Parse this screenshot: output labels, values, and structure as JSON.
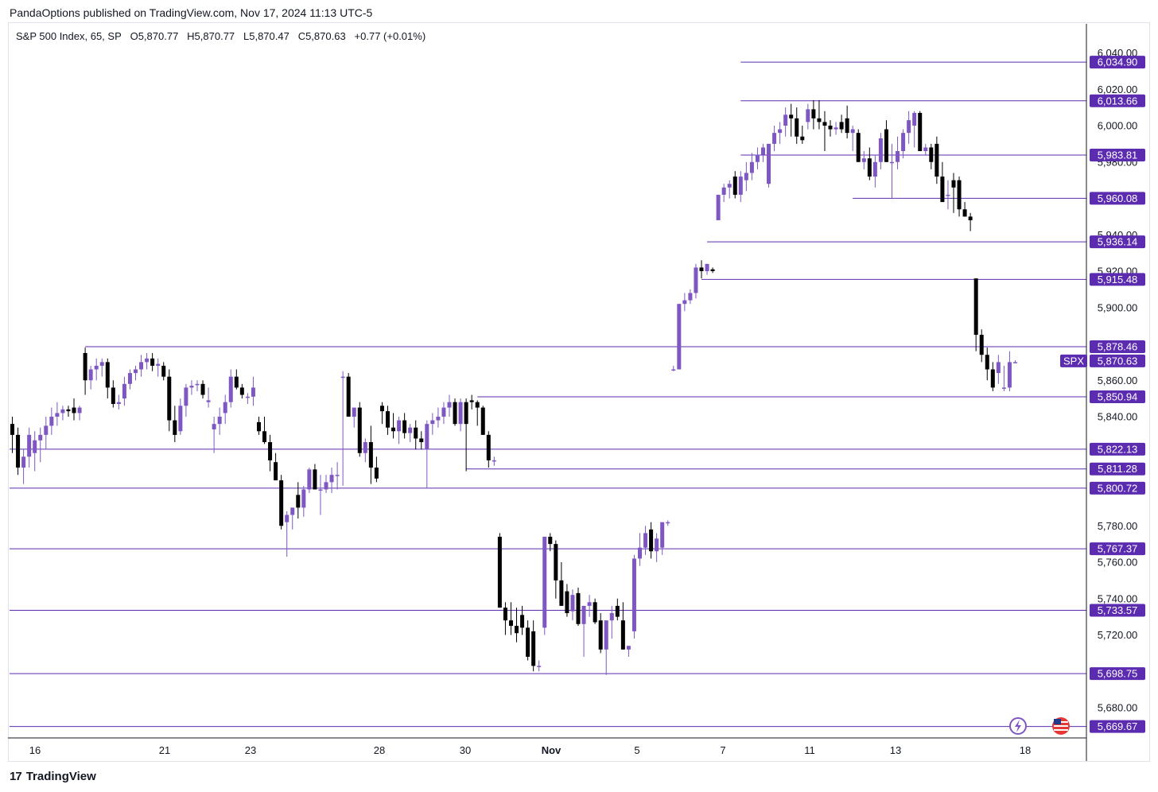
{
  "publisher_line": "PandaOptions published on TradingView.com, Nov 17, 2024 11:13 UTC-5",
  "legend": {
    "symbol": "S&P 500 Index, 65, SP",
    "open": "O5,870.77",
    "high": "H5,870.77",
    "low": "L5,870.47",
    "close": "C5,870.63",
    "change": "+0.77 (+0.01%)"
  },
  "branding": "TradingView",
  "colors": {
    "up": "#7e57c2",
    "down": "#000000",
    "level_line": "#5b2bb0",
    "label_bg": "#5b2bb0",
    "label_text": "#ffffff"
  },
  "icons": [
    "lightning-icon",
    "us-flag-icon"
  ],
  "chart_data": {
    "type": "candlestick",
    "symbol_tag": "SPX",
    "last_price": "5,870.63",
    "y_axis": {
      "ticks": [
        "5,680.00",
        "5,720.00",
        "5,740.00",
        "5,760.00",
        "5,780.00",
        "5,840.00",
        "5,860.00",
        "5,900.00",
        "5,920.00",
        "5,940.00",
        "5,960.00",
        "5,980.00",
        "6,000.00",
        "6,020.00",
        "6,040.00"
      ],
      "range": [
        5660,
        6045
      ]
    },
    "x_axis": {
      "ticks": [
        "16",
        "21",
        "23",
        "28",
        "30",
        "Nov",
        "5",
        "7",
        "11",
        "13",
        "18"
      ]
    },
    "levels": [
      {
        "value": 6034.9,
        "label": "6,034.90",
        "from_candle": 130
      },
      {
        "value": 6013.66,
        "label": "6,013.66",
        "from_candle": 130
      },
      {
        "value": 5983.81,
        "label": "5,983.81",
        "from_candle": 130
      },
      {
        "value": 5960.08,
        "label": "5,960.08",
        "from_candle": 150
      },
      {
        "value": 5936.14,
        "label": "5,936.14",
        "from_candle": 124
      },
      {
        "value": 5915.48,
        "label": "5,915.48",
        "from_candle": 123
      },
      {
        "value": 5878.46,
        "label": "5,878.46",
        "from_candle": 13
      },
      {
        "value": 5850.94,
        "label": "5,850.94",
        "from_candle": 83
      },
      {
        "value": 5822.13,
        "label": "5,822.13",
        "from_candle": 0
      },
      {
        "value": 5811.28,
        "label": "5,811.28",
        "from_candle": 81
      },
      {
        "value": 5800.72,
        "label": "5,800.72",
        "from_candle": 0
      },
      {
        "value": 5767.37,
        "label": "5,767.37",
        "from_candle": 0
      },
      {
        "value": 5733.57,
        "label": "5,733.57",
        "from_candle": 0
      },
      {
        "value": 5698.75,
        "label": "5,698.75",
        "from_candle": 0
      },
      {
        "value": 5669.67,
        "label": "5,669.67",
        "from_candle": 0
      }
    ],
    "candles": [
      [
        5836,
        5840,
        5820,
        5830
      ],
      [
        5830,
        5834,
        5808,
        5812
      ],
      [
        5812,
        5822,
        5803,
        5818
      ],
      [
        5818,
        5834,
        5812,
        5830
      ],
      [
        5820,
        5832,
        5810,
        5827
      ],
      [
        5827,
        5834,
        5815,
        5830
      ],
      [
        5830,
        5840,
        5822,
        5835
      ],
      [
        5835,
        5845,
        5830,
        5840
      ],
      [
        5840,
        5848,
        5835,
        5842
      ],
      [
        5842,
        5846,
        5838,
        5844
      ],
      [
        5844,
        5846,
        5840,
        5843
      ],
      [
        5845,
        5850,
        5838,
        5842
      ],
      [
        5842,
        5846,
        5838,
        5845
      ],
      [
        5875,
        5878,
        5852,
        5860
      ],
      [
        5860,
        5868,
        5855,
        5866
      ],
      [
        5866,
        5872,
        5860,
        5868
      ],
      [
        5868,
        5872,
        5862,
        5870
      ],
      [
        5870,
        5872,
        5850,
        5856
      ],
      [
        5856,
        5860,
        5845,
        5847
      ],
      [
        5847,
        5852,
        5844,
        5848
      ],
      [
        5850,
        5862,
        5846,
        5858
      ],
      [
        5858,
        5866,
        5855,
        5864
      ],
      [
        5864,
        5868,
        5860,
        5866
      ],
      [
        5866,
        5874,
        5862,
        5870
      ],
      [
        5870,
        5875,
        5866,
        5872
      ],
      [
        5872,
        5875,
        5865,
        5868
      ],
      [
        5868,
        5872,
        5862,
        5869
      ],
      [
        5868,
        5870,
        5860,
        5862
      ],
      [
        5862,
        5866,
        5832,
        5838
      ],
      [
        5838,
        5846,
        5826,
        5830
      ],
      [
        5832,
        5850,
        5830,
        5846
      ],
      [
        5846,
        5858,
        5840,
        5856
      ],
      [
        5856,
        5860,
        5852,
        5857
      ],
      [
        5858,
        5860,
        5854,
        5858
      ],
      [
        5858,
        5860,
        5850,
        5852
      ],
      [
        5848,
        5856,
        5845,
        5849
      ],
      [
        5833,
        5840,
        5820,
        5836
      ],
      [
        5836,
        5845,
        5830,
        5840
      ],
      [
        5842,
        5852,
        5836,
        5848
      ],
      [
        5848,
        5866,
        5845,
        5862
      ],
      [
        5862,
        5866,
        5855,
        5856
      ],
      [
        5856,
        5858,
        5850,
        5852
      ],
      [
        5851,
        5853,
        5847,
        5851
      ],
      [
        5851,
        5862,
        5846,
        5856
      ],
      [
        5837,
        5840,
        5830,
        5832
      ],
      [
        5832,
        5840,
        5825,
        5826
      ],
      [
        5826,
        5830,
        5810,
        5816
      ],
      [
        5815,
        5820,
        5805,
        5805
      ],
      [
        5805,
        5808,
        5778,
        5780
      ],
      [
        5782,
        5788,
        5763,
        5786
      ],
      [
        5786,
        5790,
        5778,
        5790
      ],
      [
        5797,
        5804,
        5784,
        5790
      ],
      [
        5790,
        5802,
        5785,
        5800
      ],
      [
        5800,
        5812,
        5798,
        5811
      ],
      [
        5811,
        5814,
        5800,
        5800
      ],
      [
        5800,
        5808,
        5786,
        5800
      ],
      [
        5800,
        5808,
        5798,
        5804
      ],
      [
        5804,
        5812,
        5798,
        5808
      ],
      [
        5808,
        5815,
        5800,
        5808
      ],
      [
        5862,
        5865,
        5802,
        5862
      ],
      [
        5862,
        5864,
        5840,
        5840
      ],
      [
        5840,
        5845,
        5834,
        5845
      ],
      [
        5845,
        5848,
        5818,
        5820
      ],
      [
        5820,
        5828,
        5815,
        5826
      ],
      [
        5826,
        5835,
        5803,
        5812
      ],
      [
        5812,
        5818,
        5804,
        5806
      ],
      [
        5846,
        5848,
        5836,
        5843
      ],
      [
        5843,
        5846,
        5830,
        5834
      ],
      [
        5834,
        5842,
        5828,
        5832
      ],
      [
        5832,
        5840,
        5825,
        5838
      ],
      [
        5838,
        5842,
        5828,
        5831
      ],
      [
        5831,
        5836,
        5826,
        5834
      ],
      [
        5834,
        5838,
        5822,
        5828
      ],
      [
        5828,
        5832,
        5822,
        5826
      ],
      [
        5822,
        5838,
        5801,
        5836
      ],
      [
        5836,
        5842,
        5830,
        5838
      ],
      [
        5838,
        5845,
        5834,
        5840
      ],
      [
        5840,
        5848,
        5836,
        5845
      ],
      [
        5845,
        5852,
        5840,
        5848
      ],
      [
        5848,
        5850,
        5835,
        5836
      ],
      [
        5836,
        5850,
        5832,
        5848
      ],
      [
        5848,
        5850,
        5810,
        5836
      ],
      [
        5849,
        5852,
        5844,
        5848
      ],
      [
        5848,
        5849,
        5835,
        5845
      ],
      [
        5845,
        5846,
        5830,
        5830
      ],
      [
        5830,
        5832,
        5812,
        5816
      ],
      [
        5816,
        5818,
        5813,
        5816
      ],
      [
        5774,
        5776,
        5735,
        5735
      ],
      [
        5735,
        5738,
        5720,
        5728
      ],
      [
        5728,
        5738,
        5720,
        5725
      ],
      [
        5725,
        5735,
        5716,
        5721
      ],
      [
        5731,
        5736,
        5720,
        5724
      ],
      [
        5724,
        5728,
        5706,
        5708
      ],
      [
        5722,
        5728,
        5700,
        5703
      ],
      [
        5703,
        5706,
        5700,
        5703
      ],
      [
        5724,
        5774,
        5720,
        5774
      ],
      [
        5774,
        5776,
        5766,
        5770
      ],
      [
        5770,
        5772,
        5740,
        5750
      ],
      [
        5750,
        5760,
        5736,
        5736
      ],
      [
        5744,
        5748,
        5730,
        5732
      ],
      [
        5733,
        5745,
        5728,
        5742
      ],
      [
        5743,
        5746,
        5725,
        5726
      ],
      [
        5726,
        5736,
        5708,
        5736
      ],
      [
        5736,
        5742,
        5730,
        5738
      ],
      [
        5738,
        5740,
        5726,
        5727
      ],
      [
        5728,
        5732,
        5710,
        5712
      ],
      [
        5712,
        5728,
        5698,
        5728
      ],
      [
        5728,
        5736,
        5718,
        5732
      ],
      [
        5736,
        5740,
        5728,
        5730
      ],
      [
        5728,
        5738,
        5712,
        5712
      ],
      [
        5712,
        5714,
        5708,
        5714
      ],
      [
        5722,
        5764,
        5718,
        5762
      ],
      [
        5762,
        5776,
        5758,
        5768
      ],
      [
        5768,
        5780,
        5764,
        5776
      ],
      [
        5778,
        5782,
        5762,
        5766
      ],
      [
        5766,
        5776,
        5760,
        5773
      ],
      [
        5768,
        5782,
        5764,
        5782
      ],
      [
        5782,
        5783,
        5780,
        5782
      ],
      [
        5866,
        5868,
        5865,
        5866
      ],
      [
        5866,
        5902,
        5866,
        5902
      ],
      [
        5902,
        5908,
        5898,
        5904
      ],
      [
        5904,
        5910,
        5902,
        5908
      ],
      [
        5908,
        5924,
        5905,
        5922
      ],
      [
        5922,
        5926,
        5916,
        5920
      ],
      [
        5920,
        5924,
        5918,
        5924
      ],
      [
        5921,
        5922,
        5919,
        5920
      ],
      [
        5948,
        5962,
        5948,
        5962
      ],
      [
        5962,
        5968,
        5958,
        5966
      ],
      [
        5966,
        5970,
        5960,
        5968
      ],
      [
        5972,
        5975,
        5960,
        5962
      ],
      [
        5962,
        5975,
        5958,
        5972
      ],
      [
        5970,
        5980,
        5964,
        5974
      ],
      [
        5974,
        5985,
        5970,
        5980
      ],
      [
        5980,
        5988,
        5976,
        5984
      ],
      [
        5984,
        5990,
        5980,
        5988
      ],
      [
        5968,
        5990,
        5966,
        5990
      ],
      [
        5990,
        6000,
        5986,
        5996
      ],
      [
        5996,
        6002,
        5990,
        5998
      ],
      [
        6000,
        6010,
        5994,
        6006
      ],
      [
        6006,
        6012,
        5994,
        6004
      ],
      [
        6004,
        6010,
        5990,
        5994
      ],
      [
        5994,
        6000,
        5990,
        5992
      ],
      [
        6002,
        6012,
        5998,
        6009
      ],
      [
        6009,
        6014,
        5998,
        6004
      ],
      [
        6004,
        6014,
        5998,
        6002
      ],
      [
        6002,
        6008,
        5986,
        6000
      ],
      [
        6000,
        6003,
        5994,
        5998
      ],
      [
        5998,
        6002,
        5995,
        5999
      ],
      [
        6002,
        6006,
        5996,
        5998
      ],
      [
        6004,
        6011,
        5993,
        5996
      ],
      [
        5996,
        6000,
        5986,
        5998
      ],
      [
        5996,
        5998,
        5980,
        5980
      ],
      [
        5980,
        5986,
        5976,
        5982
      ],
      [
        5982,
        5988,
        5970,
        5972
      ],
      [
        5972,
        5984,
        5966,
        5980
      ],
      [
        5980,
        5996,
        5976,
        5993
      ],
      [
        5998,
        6003,
        5980,
        5980
      ],
      [
        5980,
        5990,
        5960,
        5980
      ],
      [
        5980,
        5994,
        5976,
        5986
      ],
      [
        5986,
        5998,
        5982,
        5996
      ],
      [
        5996,
        6008,
        5990,
        6003
      ],
      [
        6000,
        6008,
        5988,
        6007
      ],
      [
        6007,
        6008,
        5986,
        5986
      ],
      [
        5986,
        5990,
        5984,
        5988
      ],
      [
        5988,
        5990,
        5976,
        5980
      ],
      [
        5990,
        5994,
        5968,
        5972
      ],
      [
        5972,
        5980,
        5958,
        5958
      ],
      [
        5962,
        5970,
        5954,
        5962
      ],
      [
        5970,
        5974,
        5952,
        5966
      ],
      [
        5970,
        5972,
        5950,
        5954
      ],
      [
        5954,
        5958,
        5950,
        5950
      ],
      [
        5950,
        5952,
        5942,
        5948
      ],
      [
        5916,
        5916,
        5876,
        5885
      ],
      [
        5885,
        5888,
        5870,
        5874
      ],
      [
        5874,
        5878,
        5860,
        5866
      ],
      [
        5866,
        5870,
        5854,
        5856
      ],
      [
        5864,
        5874,
        5858,
        5870
      ],
      [
        5856,
        5868,
        5854,
        5856
      ],
      [
        5856,
        5876,
        5854,
        5870
      ],
      [
        5870,
        5871,
        5870,
        5870
      ]
    ]
  }
}
